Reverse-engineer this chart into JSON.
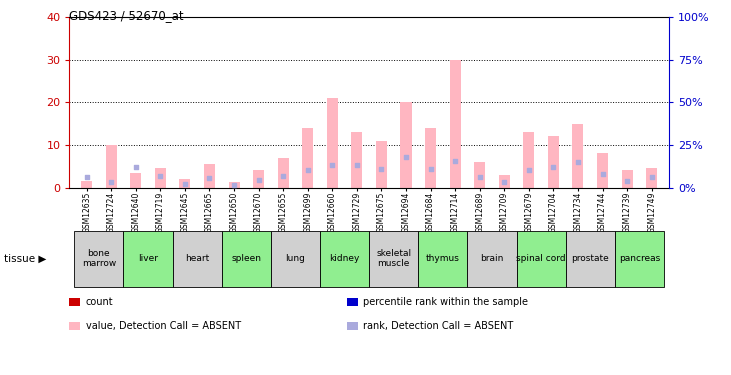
{
  "title": "GDS423 / 52670_at",
  "samples": [
    "GSM12635",
    "GSM12724",
    "GSM12640",
    "GSM12719",
    "GSM12645",
    "GSM12665",
    "GSM12650",
    "GSM12670",
    "GSM12655",
    "GSM12699",
    "GSM12660",
    "GSM12729",
    "GSM12675",
    "GSM12694",
    "GSM12684",
    "GSM12714",
    "GSM12689",
    "GSM12709",
    "GSM12679",
    "GSM12704",
    "GSM12734",
    "GSM12744",
    "GSM12739",
    "GSM12749"
  ],
  "tissues": [
    {
      "label": "bone\nmarrow",
      "start": 0,
      "end": 2,
      "color": "#d0d0d0"
    },
    {
      "label": "liver",
      "start": 2,
      "end": 4,
      "color": "#90ee90"
    },
    {
      "label": "heart",
      "start": 4,
      "end": 6,
      "color": "#d0d0d0"
    },
    {
      "label": "spleen",
      "start": 6,
      "end": 8,
      "color": "#90ee90"
    },
    {
      "label": "lung",
      "start": 8,
      "end": 10,
      "color": "#d0d0d0"
    },
    {
      "label": "kidney",
      "start": 10,
      "end": 12,
      "color": "#90ee90"
    },
    {
      "label": "skeletal\nmuscle",
      "start": 12,
      "end": 14,
      "color": "#d0d0d0"
    },
    {
      "label": "thymus",
      "start": 14,
      "end": 16,
      "color": "#90ee90"
    },
    {
      "label": "brain",
      "start": 16,
      "end": 18,
      "color": "#d0d0d0"
    },
    {
      "label": "spinal cord",
      "start": 18,
      "end": 20,
      "color": "#90ee90"
    },
    {
      "label": "prostate",
      "start": 20,
      "end": 22,
      "color": "#d0d0d0"
    },
    {
      "label": "pancreas",
      "start": 22,
      "end": 24,
      "color": "#90ee90"
    }
  ],
  "pink_bars": [
    1.5,
    10.0,
    3.5,
    4.5,
    2.0,
    5.5,
    1.2,
    4.0,
    7.0,
    14.0,
    21.0,
    13.0,
    11.0,
    20.0,
    14.0,
    30.0,
    6.0,
    3.0,
    13.0,
    12.0,
    15.0,
    8.0,
    4.0,
    4.5
  ],
  "blue_sq_y": [
    6.0,
    3.0,
    12.0,
    6.5,
    2.0,
    5.5,
    1.2,
    4.5,
    6.5,
    10.0,
    13.0,
    13.0,
    11.0,
    18.0,
    11.0,
    15.5,
    6.0,
    3.0,
    10.0,
    12.0,
    15.0,
    8.0,
    4.0,
    6.0
  ],
  "ylim_left": [
    0,
    40
  ],
  "ylim_right": [
    0,
    100
  ],
  "yticks_left": [
    0,
    10,
    20,
    30,
    40
  ],
  "ytick_labels_right": [
    "0%",
    "25%",
    "50%",
    "75%",
    "100%"
  ],
  "bar_width": 0.45,
  "pink_color": "#ffb6c1",
  "light_blue_color": "#aaaadd",
  "left_axis_color": "#cc0000",
  "right_axis_color": "#0000cc",
  "legend_items": [
    {
      "color": "#cc0000",
      "marker": "s",
      "label": "count"
    },
    {
      "color": "#0000cc",
      "marker": "s",
      "label": "percentile rank within the sample"
    },
    {
      "color": "#ffb6c1",
      "marker": "s",
      "label": "value, Detection Call = ABSENT"
    },
    {
      "color": "#aaaadd",
      "marker": "s",
      "label": "rank, Detection Call = ABSENT"
    }
  ]
}
